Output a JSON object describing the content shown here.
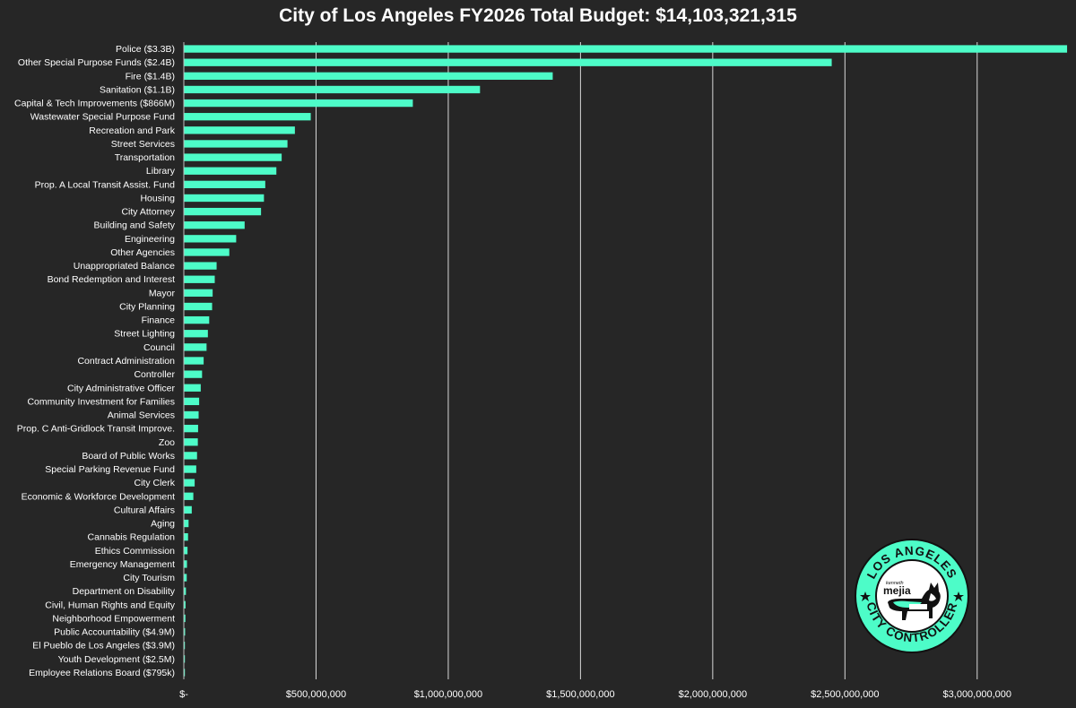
{
  "chart_data": {
    "type": "bar",
    "orientation": "horizontal",
    "title": "City of Los Angeles FY2026 Total Budget: $14,103,321,315",
    "xlabel": "",
    "ylabel": "",
    "xlim": [
      0,
      3350000000
    ],
    "grid": true,
    "bar_color": "#4dfcc8",
    "background": "#262626",
    "x_ticks": [
      0,
      500000000,
      1000000000,
      1500000000,
      2000000000,
      2500000000,
      3000000000
    ],
    "x_tick_labels": [
      "$-",
      "$500,000,000",
      "$1,000,000,000",
      "$1,500,000,000",
      "$2,000,000,000",
      "$2,500,000,000",
      "$3,000,000,000"
    ],
    "categories": [
      "Police ($3.3B)",
      "Other Special Purpose Funds ($2.4B)",
      "Fire ($1.4B)",
      "Sanitation ($1.1B)",
      "Capital & Tech Improvements ($866M)",
      "Wastewater Special Purpose Fund",
      "Recreation and Park",
      "Street Services",
      "Transportation",
      "Library",
      "Prop. A Local Transit Assist. Fund",
      "Housing",
      "City Attorney",
      "Building and Safety",
      "Engineering",
      "Other Agencies",
      "Unappropriated Balance",
      "Bond Redemption and Interest",
      "Mayor",
      "City Planning",
      "Finance",
      "Street Lighting",
      "Council",
      "Contract Administration",
      "Controller",
      "City Administrative Officer",
      "Community Investment for Families",
      "Animal Services",
      "Prop. C Anti-Gridlock Transit Improve.",
      "Zoo",
      "Board of Public Works",
      "Special Parking Revenue Fund",
      "City Clerk",
      "Economic & Workforce Development",
      "Cultural Affairs",
      "Aging",
      "Cannabis Regulation",
      "Ethics Commission",
      "Emergency Management",
      "City Tourism",
      "Department on Disability",
      "Civil, Human Rights and Equity",
      "Neighborhood Empowerment",
      "Public Accountability ($4.9M)",
      "El Pueblo de Los Angeles ($3.9M)",
      "Youth Development ($2.5M)",
      "Employee Relations Board ($795k)"
    ],
    "values": [
      3340000000,
      2450000000,
      1395000000,
      1120000000,
      866000000,
      480000000,
      420000000,
      392000000,
      370000000,
      350000000,
      308000000,
      303000000,
      292000000,
      230000000,
      198000000,
      172000000,
      124000000,
      117000000,
      109000000,
      107000000,
      96000000,
      91000000,
      86000000,
      75000000,
      69000000,
      64000000,
      58000000,
      56000000,
      54000000,
      53000000,
      50000000,
      47000000,
      41000000,
      36000000,
      30000000,
      18000000,
      16000000,
      14000000,
      12000000,
      11000000,
      8000000,
      6500000,
      6000000,
      4900000,
      3900000,
      2500000,
      795000
    ]
  },
  "logo": {
    "text_top": "LOS ANGELES",
    "text_bottom": "CITY CONTROLLER",
    "name_small": "kenneth",
    "name_big": "mejia",
    "ring_color": "#4dfcc8"
  }
}
